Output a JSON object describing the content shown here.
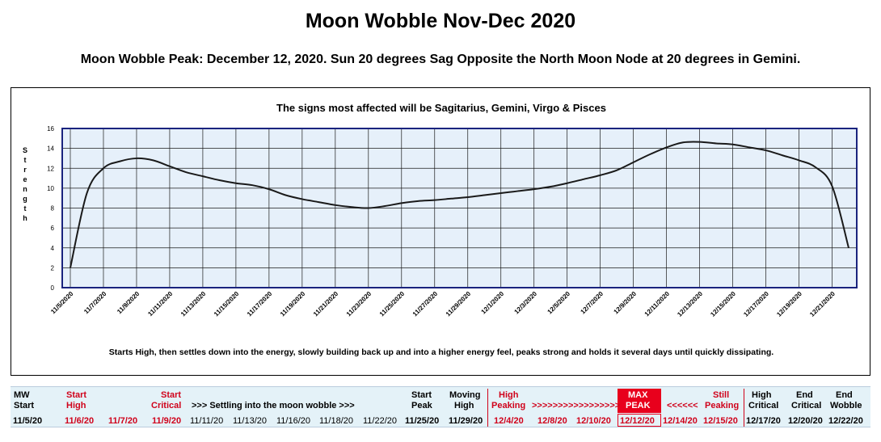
{
  "title": "Moon Wobble Nov-Dec 2020",
  "subtitle": "Moon Wobble Peak:  December 12, 2020.  Sun 20 degrees Sag Opposite the North Moon Node at 20 degrees in Gemini.",
  "chart_data": {
    "type": "line",
    "title": "The signs most affected will be Sagitarius, Gemini, Virgo & Pisces",
    "ylabel": "Strength",
    "xlabel": "",
    "ylim": [
      0,
      16
    ],
    "y_ticks": [
      "0",
      "2",
      "4",
      "6",
      "8",
      "10",
      "12",
      "14",
      "16"
    ],
    "x_tick_labels": [
      "11/5/2020",
      "11/7/2020",
      "11/9/2020",
      "11/11/2020",
      "11/13/2020",
      "11/15/2020",
      "11/17/2020",
      "11/19/2020",
      "11/21/2020",
      "11/23/2020",
      "11/25/2020",
      "11/27/2020",
      "11/29/2020",
      "12/1/2020",
      "12/3/2020",
      "12/5/2020",
      "12/7/2020",
      "12/9/2020",
      "12/11/2020",
      "12/13/2020",
      "12/15/2020",
      "12/17/2020",
      "12/19/2020",
      "12/21/2020"
    ],
    "grid": true,
    "background_color": "#e6f0fa",
    "plot_border_color": "#1a237e",
    "line_color": "#1a1a1a",
    "series": [
      {
        "x": [
          "11/5/2020",
          "11/6/2020",
          "11/7/2020",
          "11/8/2020",
          "11/9/2020",
          "11/10/2020",
          "11/11/2020",
          "11/12/2020",
          "11/13/2020",
          "11/14/2020",
          "11/15/2020",
          "11/16/2020",
          "11/17/2020",
          "11/18/2020",
          "11/19/2020",
          "11/20/2020",
          "11/21/2020",
          "11/22/2020",
          "11/23/2020",
          "11/24/2020",
          "11/25/2020",
          "11/26/2020",
          "11/27/2020",
          "11/28/2020",
          "11/29/2020",
          "11/30/2020",
          "12/1/2020",
          "12/2/2020",
          "12/3/2020",
          "12/4/2020",
          "12/5/2020",
          "12/6/2020",
          "12/7/2020",
          "12/8/2020",
          "12/9/2020",
          "12/10/2020",
          "12/11/2020",
          "12/12/2020",
          "12/13/2020",
          "12/14/2020",
          "12/15/2020",
          "12/16/2020",
          "12/17/2020",
          "12/18/2020",
          "12/19/2020",
          "12/20/2020",
          "12/21/2020",
          "12/22/2020"
        ],
        "values": [
          2,
          9.5,
          12,
          12.7,
          13,
          12.8,
          12.2,
          11.6,
          11.2,
          10.8,
          10.5,
          10.3,
          9.9,
          9.3,
          8.9,
          8.6,
          8.3,
          8.1,
          8,
          8.2,
          8.5,
          8.7,
          8.8,
          8.95,
          9.1,
          9.3,
          9.5,
          9.7,
          9.9,
          10.15,
          10.5,
          10.9,
          11.3,
          11.8,
          12.6,
          13.4,
          14.1,
          14.6,
          14.65,
          14.5,
          14.4,
          14.1,
          13.8,
          13.3,
          12.8,
          12.1,
          10.2,
          4
        ]
      }
    ]
  },
  "chart_note": "Starts High, then settles down into the energy, slowly building back up and into a higher energy feel, peaks strong and holds it several days until quickly dissipating.",
  "table": {
    "row1": [
      "MW",
      "Start",
      "Start",
      "Start",
      "Moving",
      "High",
      "MAX",
      "Still",
      "High",
      "End",
      "End"
    ],
    "row2": [
      "Start",
      "High",
      "Critical",
      ">>>  Settling into the moon wobble  >>>",
      "Peak",
      "High",
      "Peaking",
      ">>>>>>>>>>>>>>>>>",
      "PEAK",
      "<<<<<<",
      "Peaking",
      "Critical",
      "Critical",
      "Wobble"
    ],
    "row3": [
      "11/5/20",
      "11/6/20",
      "11/7/20",
      "11/9/20",
      "11/11/20",
      "11/13/20",
      "11/16/20",
      "11/18/20",
      "11/22/20",
      "11/25/20",
      "11/29/20",
      "12/4/20",
      "12/8/20",
      "12/10/20",
      "12/12/20",
      "12/14/20",
      "12/15/20",
      "12/17/20",
      "12/20/20",
      "12/22/20"
    ],
    "red_color": "#d0021b",
    "max_color": "#e8001c",
    "band_color": "#e4f2f8"
  }
}
